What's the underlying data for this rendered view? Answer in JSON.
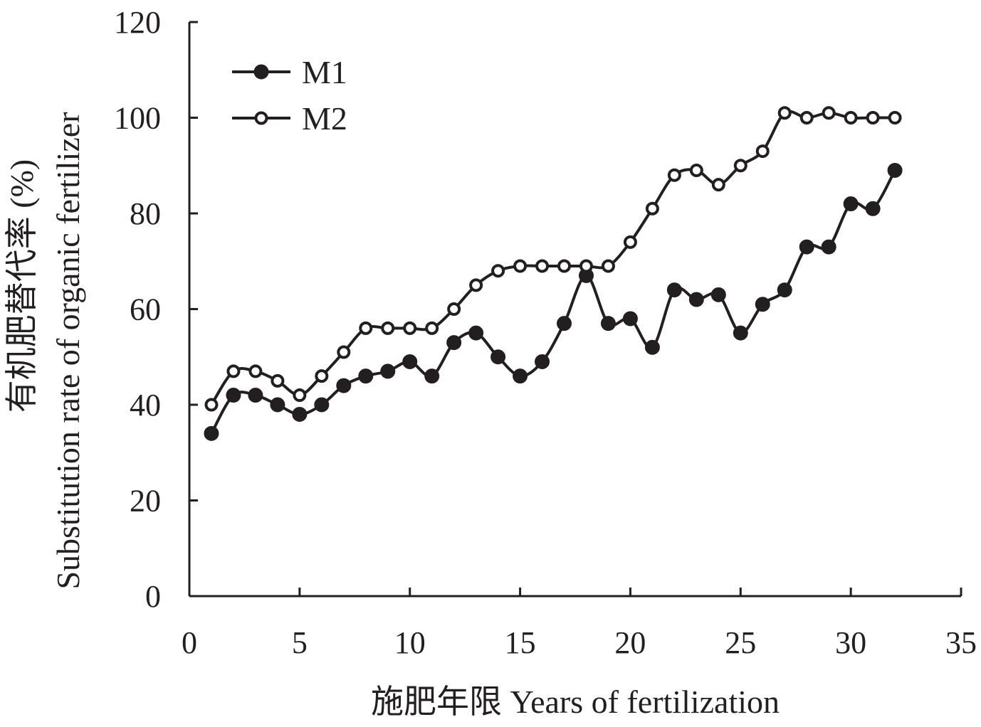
{
  "chart_data": {
    "type": "line",
    "xlabel": "施肥年限 Years of fertilization",
    "ylabel_line1": "有机肥替代率 (%)",
    "ylabel_line2": "Substitution rate of organic fertilizer",
    "xlim": [
      0,
      35
    ],
    "ylim": [
      0,
      120
    ],
    "xticks": [
      0,
      5,
      10,
      15,
      20,
      25,
      30,
      35
    ],
    "yticks": [
      0,
      20,
      40,
      60,
      80,
      100,
      120
    ],
    "grid": false,
    "legend_position": "top-left",
    "x": [
      1,
      2,
      3,
      4,
      5,
      6,
      7,
      8,
      9,
      10,
      11,
      12,
      13,
      14,
      15,
      16,
      17,
      18,
      19,
      20,
      21,
      22,
      23,
      24,
      25,
      26,
      27,
      28,
      29,
      30,
      31,
      32
    ],
    "series": [
      {
        "name": "M1",
        "marker": "filled-circle",
        "values": [
          34,
          42,
          42,
          40,
          38,
          40,
          44,
          46,
          47,
          49,
          46,
          53,
          55,
          50,
          46,
          49,
          57,
          67,
          57,
          58,
          52,
          64,
          62,
          63,
          55,
          61,
          64,
          73,
          73,
          82,
          81,
          89
        ]
      },
      {
        "name": "M2",
        "marker": "open-circle",
        "values": [
          40,
          47,
          47,
          45,
          42,
          46,
          51,
          56,
          56,
          56,
          56,
          60,
          65,
          68,
          69,
          69,
          69,
          69,
          69,
          74,
          81,
          88,
          89,
          86,
          90,
          93,
          101,
          100,
          101,
          100,
          100,
          100
        ]
      }
    ]
  },
  "colors": {
    "line": "#231f20",
    "marker_fill_open": "#ffffff",
    "marker_fill_solid": "#231f20"
  }
}
